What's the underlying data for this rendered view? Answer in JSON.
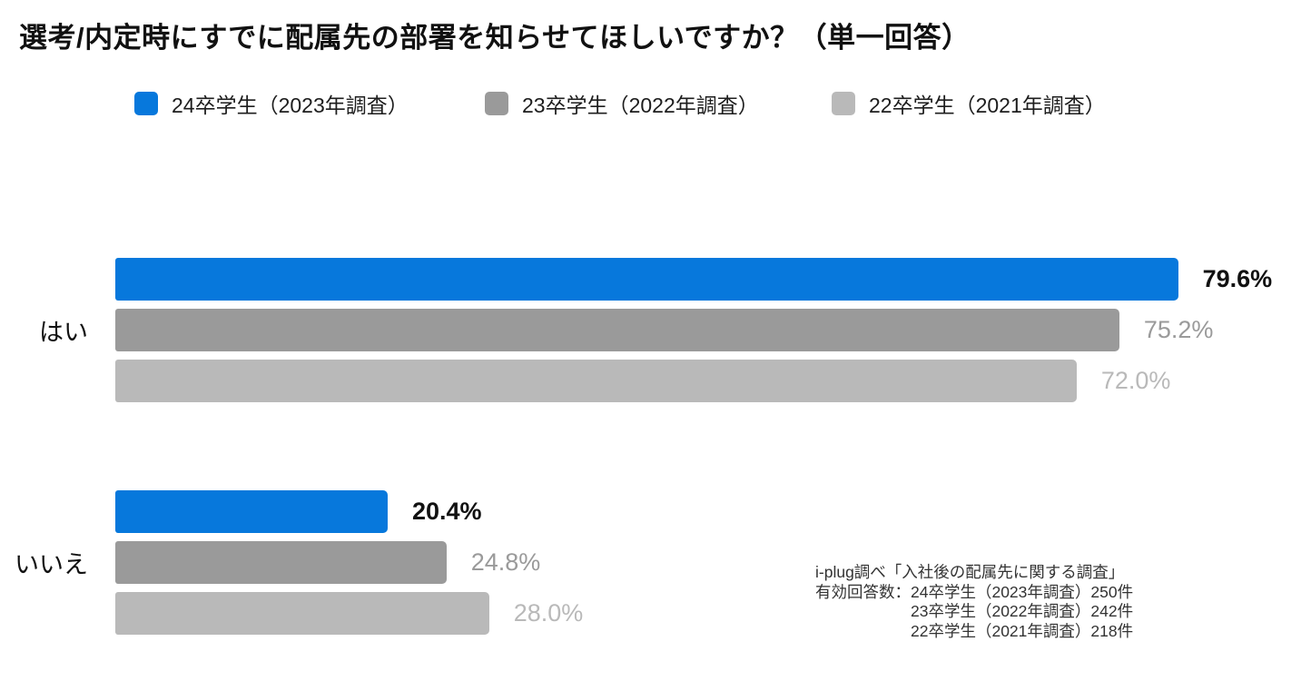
{
  "title": "選考/内定時にすでに配属先の部署を知らせてほしいですか？（単一回答）",
  "chart_data": {
    "type": "bar",
    "orientation": "horizontal",
    "title": "選考/内定時にすでに配属先の部署を知らせてほしいですか？（単一回答）",
    "categories": [
      "はい",
      "いいえ"
    ],
    "series": [
      {
        "name": "24卒学生（2023年調査）",
        "color": "#0778DC",
        "values": [
          79.6,
          20.4
        ],
        "value_label_color": "#111111",
        "value_label_weight": 700
      },
      {
        "name": "23卒学生（2022年調査）",
        "color": "#9A9A9A",
        "values": [
          75.2,
          24.8
        ],
        "value_label_color": "#9A9A9A",
        "value_label_weight": 400
      },
      {
        "name": "22卒学生（2021年調査）",
        "color": "#B9B9B9",
        "values": [
          72.0,
          28.0
        ],
        "value_label_color": "#B9B9B9",
        "value_label_weight": 400
      }
    ],
    "value_suffix": "%",
    "value_decimals": 1,
    "xlim": [
      0,
      85
    ],
    "legend_position": "top",
    "grid": false
  },
  "footer": {
    "lines": [
      "i-plug調べ「入社後の配属先に関する調査」",
      "有効回答数：24卒学生（2023年調査）250件",
      "23卒学生（2022年調査）242件",
      "22卒学生（2021年調査）218件"
    ]
  }
}
